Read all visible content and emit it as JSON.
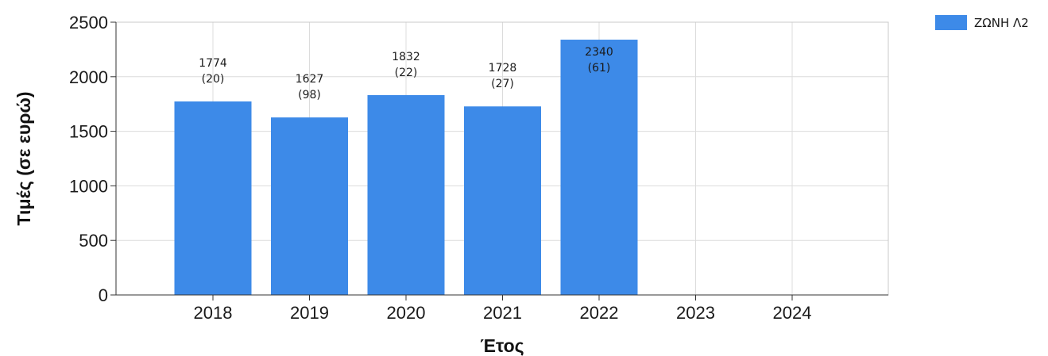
{
  "chart_data": {
    "type": "bar",
    "xlabel": "Έτος",
    "ylabel": "Τιμές (σε ευρώ)",
    "ylim": [
      0,
      2500
    ],
    "yticks": [
      "0",
      "500",
      "1000",
      "1500",
      "2000",
      "2500"
    ],
    "categories": [
      "2018",
      "2019",
      "2020",
      "2021",
      "2022",
      "2023",
      "2024"
    ],
    "series": [
      {
        "name": "ΖΩΝΗ Λ2",
        "color": "#3d8ae8",
        "values": [
          1774,
          1627,
          1832,
          1728,
          2340,
          null,
          null
        ],
        "value_labels": [
          "1774",
          "1627",
          "1832",
          "1728",
          "2340",
          "",
          ""
        ],
        "count_labels": [
          "(20)",
          "(98)",
          "(22)",
          "(27)",
          "(61)",
          "",
          ""
        ]
      }
    ],
    "grid": true,
    "legend_position": "top-right"
  }
}
